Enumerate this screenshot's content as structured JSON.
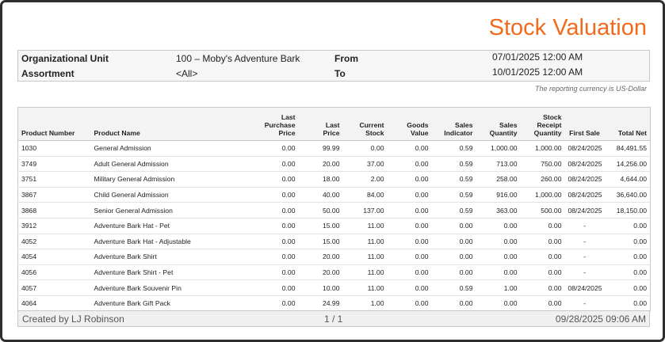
{
  "header": {
    "title": "Stock Valuation",
    "fields": [
      {
        "label": "Organizational Unit",
        "value": "100 – Moby's Adventure Bark"
      },
      {
        "label": "Assortment",
        "value": "<All>"
      },
      {
        "label": "From",
        "value": "07/01/2025 12:00 AM"
      },
      {
        "label": "To",
        "value": "10/01/2025 12:00 AM"
      }
    ],
    "note": "The reporting currency is US-Dollar"
  },
  "table": {
    "columns": [
      "Product Number",
      "Product Name",
      "Last Purchase Price",
      "Last Price",
      "Current Stock",
      "Goods Value",
      "Sales Indicator",
      "Sales Quantity",
      "Stock Receipt Quantity",
      "First Sale",
      "Total Net"
    ],
    "rows": [
      [
        "1030",
        "General Admission",
        "0.00",
        "99.99",
        "0.00",
        "0.00",
        "0.59",
        "1,000.00",
        "1,000.00",
        "08/24/2025",
        "84,491.55"
      ],
      [
        "3749",
        "Adult General Admission",
        "0.00",
        "20.00",
        "37.00",
        "0.00",
        "0.59",
        "713.00",
        "750.00",
        "08/24/2025",
        "14,256.00"
      ],
      [
        "3751",
        "Military General Admission",
        "0.00",
        "18.00",
        "2.00",
        "0.00",
        "0.59",
        "258.00",
        "260.00",
        "08/24/2025",
        "4,644.00"
      ],
      [
        "3867",
        "Child General Admission",
        "0.00",
        "40.00",
        "84.00",
        "0.00",
        "0.59",
        "916.00",
        "1,000.00",
        "08/24/2025",
        "36,640.00"
      ],
      [
        "3868",
        "Senior General Admission",
        "0.00",
        "50.00",
        "137.00",
        "0.00",
        "0.59",
        "363.00",
        "500.00",
        "08/24/2025",
        "18,150.00"
      ],
      [
        "3912",
        "Adventure Bark Hat - Pet",
        "0.00",
        "15.00",
        "11.00",
        "0.00",
        "0.00",
        "0.00",
        "0.00",
        "-",
        "0.00"
      ],
      [
        "4052",
        "Adventure Bark Hat - Adjustable",
        "0.00",
        "15.00",
        "11.00",
        "0.00",
        "0.00",
        "0.00",
        "0.00",
        "-",
        "0.00"
      ],
      [
        "4054",
        "Adventure Bark Shirt",
        "0.00",
        "20.00",
        "11.00",
        "0.00",
        "0.00",
        "0.00",
        "0.00",
        "-",
        "0.00"
      ],
      [
        "4056",
        "Adventure Bark Shirt - Pet",
        "0.00",
        "20.00",
        "11.00",
        "0.00",
        "0.00",
        "0.00",
        "0.00",
        "-",
        "0.00"
      ],
      [
        "4057",
        "Adventure Bark Souvenir Pin",
        "0.00",
        "10.00",
        "11.00",
        "0.00",
        "0.59",
        "1.00",
        "0.00",
        "08/24/2025",
        "0.00"
      ],
      [
        "4064",
        "Adventure Bark Gift Pack",
        "0.00",
        "24.99",
        "1.00",
        "0.00",
        "0.00",
        "0.00",
        "0.00",
        "-",
        "0.00"
      ]
    ]
  },
  "footer": {
    "created_by": "Created by LJ Robinson",
    "page": "1 / 1",
    "timestamp": "09/28/2025 09:06 AM"
  }
}
